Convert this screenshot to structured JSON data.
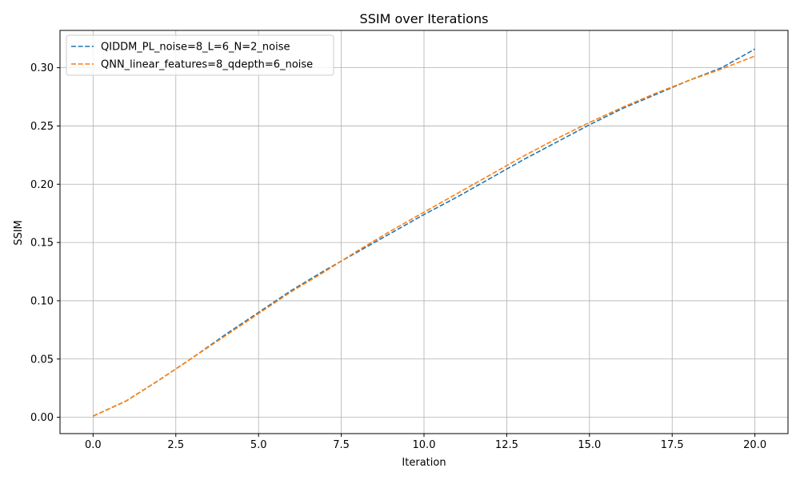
{
  "chart_data": {
    "type": "line",
    "title": "SSIM over Iterations",
    "xlabel": "Iteration",
    "ylabel": "SSIM",
    "xlim": [
      -1.0,
      21.0
    ],
    "ylim": [
      -0.014,
      0.332
    ],
    "xticks": [
      0.0,
      2.5,
      5.0,
      7.5,
      10.0,
      12.5,
      15.0,
      17.5,
      20.0
    ],
    "xtick_labels": [
      "0.0",
      "2.5",
      "5.0",
      "7.5",
      "10.0",
      "12.5",
      "15.0",
      "17.5",
      "20.0"
    ],
    "yticks": [
      0.0,
      0.05,
      0.1,
      0.15,
      0.2,
      0.25,
      0.3
    ],
    "ytick_labels": [
      "0.00",
      "0.05",
      "0.10",
      "0.15",
      "0.20",
      "0.25",
      "0.30"
    ],
    "grid": true,
    "legend_position": "top-left",
    "x": [
      0,
      1,
      2,
      3,
      4,
      5,
      6,
      7,
      8,
      9,
      10,
      11,
      12,
      13,
      14,
      15,
      16,
      17,
      18,
      19,
      20
    ],
    "series": [
      {
        "name": "QIDDM_PL_noise=8_L=6_N=2_noise",
        "color": "#1f77b4",
        "values": [
          0.001,
          0.014,
          0.032,
          0.051,
          0.071,
          0.09,
          0.109,
          0.126,
          0.142,
          0.158,
          0.174,
          0.189,
          0.205,
          0.221,
          0.236,
          0.251,
          0.265,
          0.277,
          0.289,
          0.3,
          0.316
        ]
      },
      {
        "name": "QNN_linear_features=8_qdepth=6_noise",
        "color": "#ff7f0e",
        "values": [
          0.001,
          0.014,
          0.032,
          0.051,
          0.07,
          0.089,
          0.108,
          0.125,
          0.143,
          0.16,
          0.176,
          0.192,
          0.208,
          0.224,
          0.239,
          0.253,
          0.266,
          0.278,
          0.289,
          0.299,
          0.31
        ]
      }
    ]
  }
}
